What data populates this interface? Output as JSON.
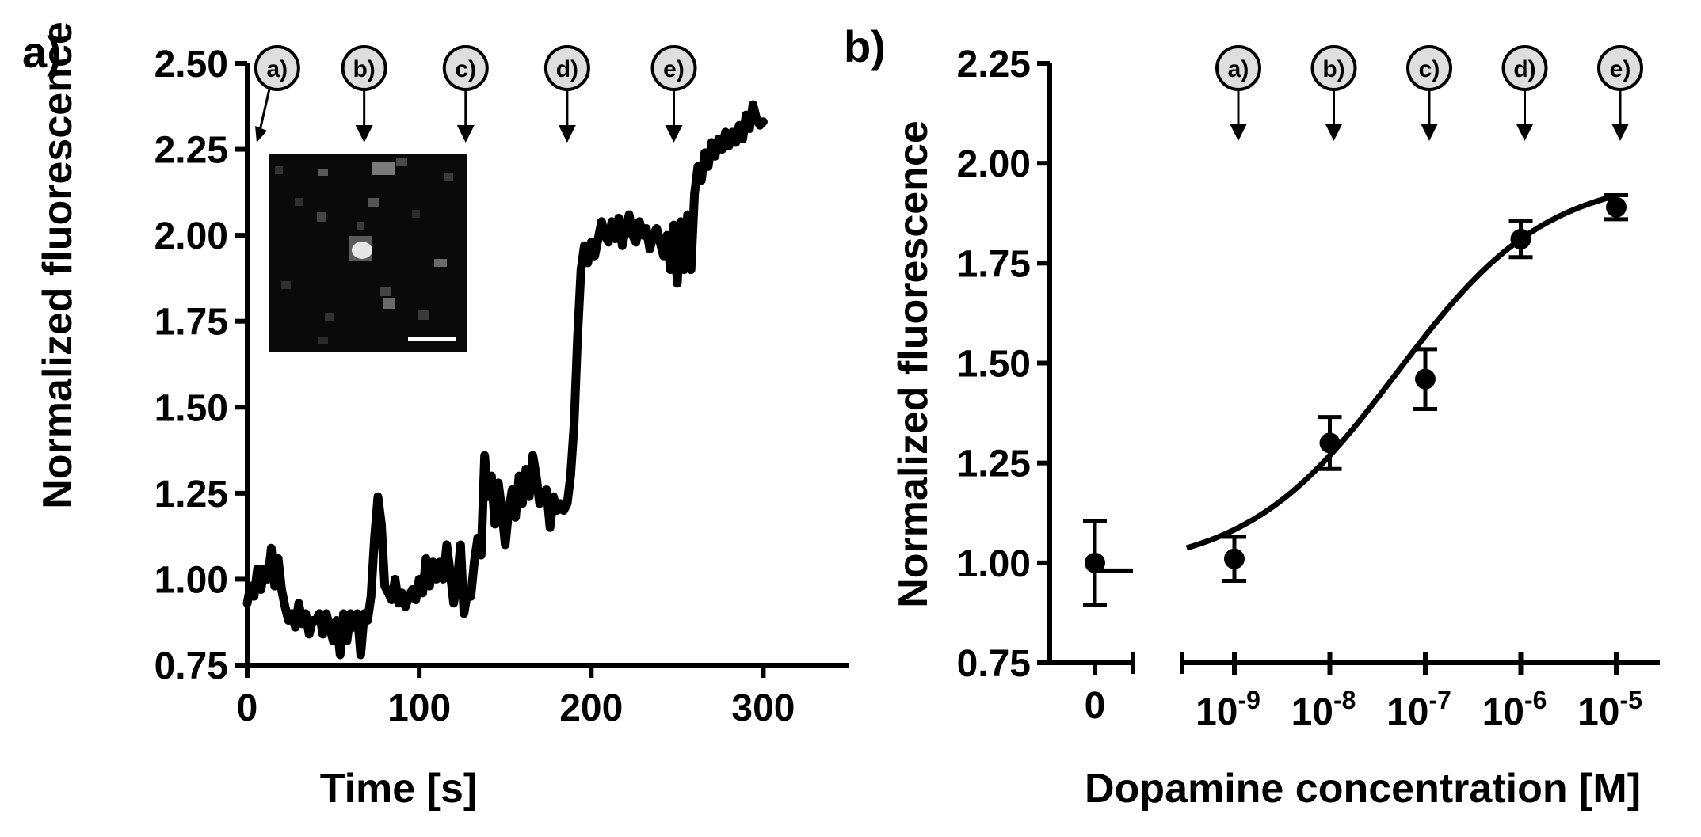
{
  "chart_data": [
    {
      "panel_label": "a)",
      "type": "line",
      "xlabel": "Time [s]",
      "ylabel": "Normalized fluorescence",
      "xlim": [
        0,
        350
      ],
      "ylim": [
        0.75,
        2.5
      ],
      "xticks": [
        0,
        100,
        200,
        300
      ],
      "xtick_labels": [
        "0",
        "100",
        "200",
        "300"
      ],
      "yticks": [
        0.75,
        1.0,
        1.25,
        1.5,
        1.75,
        2.0,
        2.25,
        2.5
      ],
      "ytick_labels": [
        "0.75",
        "1.00",
        "1.25",
        "1.50",
        "1.75",
        "2.00",
        "2.25",
        "2.50"
      ],
      "grid": false,
      "inset": "fluorescence microscopy image with scale bar",
      "markers": [
        {
          "label": "a)",
          "x": 5
        },
        {
          "label": "b)",
          "x": 68
        },
        {
          "label": "c)",
          "x": 127
        },
        {
          "label": "d)",
          "x": 186
        },
        {
          "label": "e)",
          "x": 248
        }
      ],
      "series": [
        {
          "name": "fluorescence trace",
          "x": [
            0,
            2,
            4,
            6,
            8,
            10,
            12,
            14,
            16,
            18,
            20,
            22,
            24,
            26,
            28,
            30,
            32,
            34,
            36,
            38,
            40,
            42,
            44,
            46,
            48,
            50,
            52,
            54,
            56,
            58,
            60,
            62,
            64,
            66,
            68,
            70,
            72,
            74,
            76,
            78,
            80,
            82,
            84,
            86,
            88,
            90,
            92,
            94,
            96,
            98,
            100,
            102,
            104,
            106,
            108,
            110,
            112,
            114,
            116,
            118,
            120,
            122,
            124,
            126,
            128,
            130,
            132,
            134,
            136,
            138,
            140,
            142,
            144,
            146,
            148,
            150,
            152,
            154,
            156,
            158,
            160,
            162,
            164,
            166,
            168,
            170,
            172,
            174,
            176,
            178,
            180,
            182,
            184,
            186,
            188,
            190,
            192,
            194,
            196,
            198,
            200,
            202,
            204,
            206,
            208,
            210,
            212,
            214,
            216,
            218,
            220,
            222,
            224,
            226,
            228,
            230,
            232,
            234,
            236,
            238,
            240,
            242,
            244,
            246,
            248,
            250,
            252,
            254,
            256,
            258,
            260,
            262,
            264,
            266,
            268,
            270,
            272,
            274,
            276,
            278,
            280,
            282,
            284,
            286,
            288,
            290,
            292,
            294,
            296,
            298,
            300
          ],
          "y": [
            0.93,
            0.98,
            0.95,
            1.03,
            0.97,
            1.03,
            1.0,
            1.09,
            0.98,
            1.06,
            0.97,
            0.92,
            0.88,
            0.9,
            0.86,
            0.93,
            0.87,
            0.9,
            0.84,
            0.88,
            0.88,
            0.9,
            0.84,
            0.9,
            0.86,
            0.82,
            0.88,
            0.78,
            0.9,
            0.82,
            0.9,
            0.86,
            0.9,
            0.78,
            0.9,
            0.88,
            0.95,
            1.12,
            1.24,
            1.16,
            0.98,
            0.96,
            0.94,
            1.0,
            0.93,
            0.96,
            0.92,
            0.95,
            0.97,
            0.94,
            1.0,
            0.96,
            1.06,
            0.98,
            1.05,
            1.0,
            1.05,
            1.0,
            1.1,
            1.02,
            0.93,
            0.99,
            1.1,
            0.9,
            0.96,
            0.95,
            1.05,
            1.12,
            1.07,
            1.36,
            1.24,
            1.3,
            1.16,
            1.28,
            1.2,
            1.1,
            1.2,
            1.26,
            1.18,
            1.3,
            1.22,
            1.32,
            1.24,
            1.36,
            1.3,
            1.22,
            1.25,
            1.26,
            1.15,
            1.24,
            1.2,
            1.22,
            1.2,
            1.22,
            1.3,
            1.45,
            1.7,
            1.9,
            1.97,
            1.92,
            1.98,
            1.94,
            1.99,
            2.04,
            2.0,
            1.98,
            2.04,
            1.99,
            2.05,
            1.97,
            2.02,
            2.06,
            2.0,
            1.98,
            2.04,
            2.0,
            2.02,
            1.96,
            2.0,
            2.02,
            1.98,
            1.94,
            2.0,
            1.9,
            2.03,
            1.86,
            2.04,
            1.9,
            2.06,
            1.9,
            2.12,
            2.2,
            2.16,
            2.24,
            2.2,
            2.27,
            2.23,
            2.28,
            2.25,
            2.3,
            2.26,
            2.3,
            2.27,
            2.32,
            2.28,
            2.35,
            2.31,
            2.38,
            2.34,
            2.32,
            2.33
          ]
        }
      ]
    },
    {
      "panel_label": "b)",
      "type": "scatter",
      "xlabel": "Dopamine concentration [M]",
      "ylabel": "Normalized fluorescence",
      "xscale": "log",
      "ylim": [
        0.75,
        2.25
      ],
      "yticks": [
        0.75,
        1.0,
        1.25,
        1.5,
        1.75,
        2.0,
        2.25
      ],
      "ytick_labels": [
        "0.75",
        "1.00",
        "1.25",
        "1.50",
        "1.75",
        "2.00",
        "2.25"
      ],
      "zero_tick_label": "0",
      "xtick_bases": [
        "10",
        "10",
        "10",
        "10",
        "10"
      ],
      "xtick_exponents": [
        "-9",
        "-8",
        "-7",
        "-6",
        "-5"
      ],
      "xtick_log10": [
        -9,
        -8,
        -7,
        -6,
        -5
      ],
      "grid": false,
      "markers": [
        {
          "label": "a)",
          "log10_x": -9
        },
        {
          "label": "b)",
          "log10_x": -8
        },
        {
          "label": "c)",
          "log10_x": -7
        },
        {
          "label": "d)",
          "log10_x": -6
        },
        {
          "label": "e)",
          "log10_x": -5
        }
      ],
      "zero_point": {
        "x": 0,
        "y": 1.0,
        "error": 0.105
      },
      "points": [
        {
          "log10_x": -9,
          "y": 1.01,
          "error": 0.055
        },
        {
          "log10_x": -8,
          "y": 1.3,
          "error": 0.065
        },
        {
          "log10_x": -7,
          "y": 1.46,
          "error": 0.075
        },
        {
          "log10_x": -6,
          "y": 1.81,
          "error": 0.045
        },
        {
          "log10_x": -5,
          "y": 1.89,
          "error": 0.03
        }
      ],
      "fit": {
        "model": "sigmoidal dose-response",
        "bottom": 0.98,
        "top": 1.97,
        "log10_ec50": -7.3,
        "hill_slope": 0.55,
        "log10_x_range": [
          -9.5,
          -5
        ]
      }
    }
  ]
}
